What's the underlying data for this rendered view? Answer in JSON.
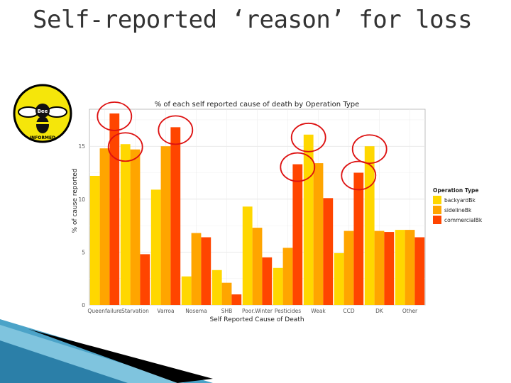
{
  "slide": {
    "title": "Self-reported ‘reason’ for loss"
  },
  "logo": {
    "top_text": "Bee",
    "bottom_text": "INFORMED"
  },
  "colors": {
    "backyard": "#ffd700",
    "sideline": "#ffa500",
    "commercial": "#ff4500",
    "highlight": "#dd1111"
  },
  "chart_data": {
    "type": "bar",
    "title": "% of each self reported cause of death by Operation Type",
    "xlabel": "Self Reported Cause of Death",
    "ylabel": "% of cause reported",
    "ylim": [
      0,
      18.5
    ],
    "yticks": [
      0,
      5,
      10,
      15
    ],
    "categories": [
      "Queenfailure",
      "Starvation",
      "Varroa",
      "Nosema",
      "SHB",
      "Poor.Winter",
      "Pesticides",
      "Weak",
      "CCD",
      "DK",
      "Other"
    ],
    "series": [
      {
        "name": "backyardBk",
        "values": [
          12.2,
          15.2,
          10.9,
          2.7,
          3.3,
          9.3,
          3.5,
          16.1,
          4.9,
          15.0,
          7.1
        ]
      },
      {
        "name": "sidelineBk",
        "values": [
          14.8,
          14.7,
          15.0,
          6.8,
          2.1,
          7.3,
          5.4,
          13.4,
          7.0,
          7.0,
          7.1
        ]
      },
      {
        "name": "commercialBk",
        "values": [
          18.1,
          4.8,
          16.8,
          6.4,
          1.0,
          4.5,
          13.3,
          10.1,
          12.5,
          6.9,
          6.4
        ]
      }
    ],
    "legend": {
      "title": "Operation Type",
      "position": "right"
    },
    "grid": true
  }
}
